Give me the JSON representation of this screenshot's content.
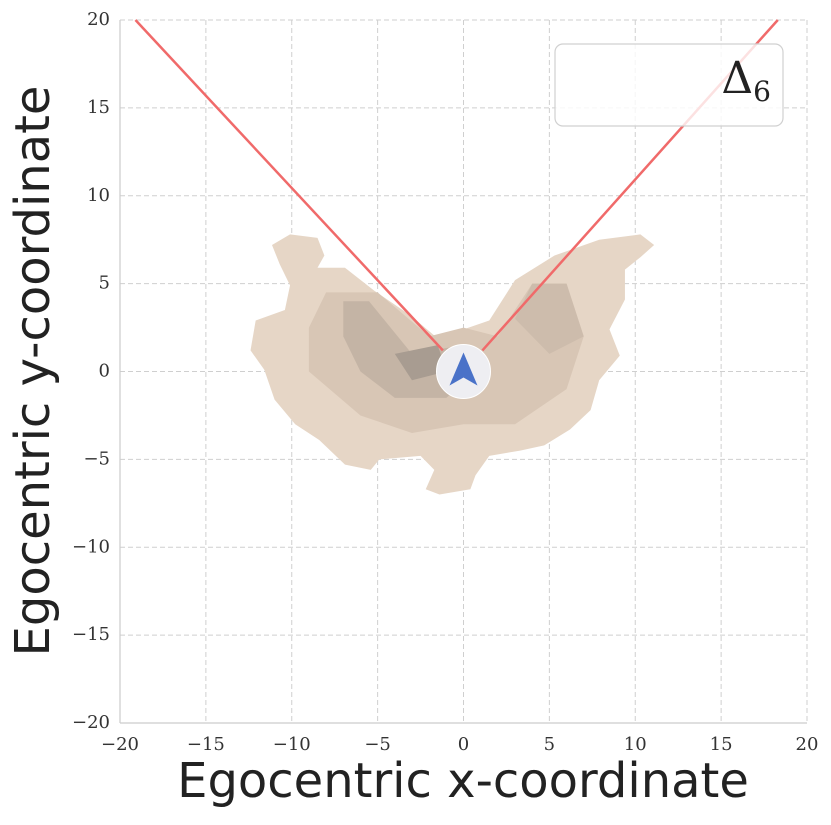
{
  "chart_data": {
    "type": "kde",
    "xlabel": "Egocentric x-coordinate",
    "ylabel": "Egocentric y-coordinate",
    "xlim": [
      -20,
      20
    ],
    "ylim": [
      -20,
      20
    ],
    "xticks": [
      {
        "value": -20,
        "label": "−20"
      },
      {
        "value": -15,
        "label": "−15"
      },
      {
        "value": -10,
        "label": "−10"
      },
      {
        "value": -5,
        "label": "−5"
      },
      0,
      5,
      10,
      15,
      20
    ],
    "yticks": [
      {
        "value": -20,
        "label": "−20"
      },
      {
        "value": -15,
        "label": "−15"
      },
      {
        "value": -10,
        "label": "−10"
      },
      {
        "value": -5,
        "label": "−5"
      },
      0,
      5,
      10,
      15,
      20
    ],
    "grid": true,
    "contours": [
      {
        "color": "#e6d6c6",
        "x": [
          -11.15,
          -10.1,
          -8.5,
          -8.1,
          -8.5,
          -6.9,
          -5.2,
          -3.1,
          -1.4,
          0,
          1.5,
          3.0,
          5.3,
          7.9,
          10.3,
          11.1,
          10.3,
          9.4,
          9.4,
          8.5,
          9.1,
          7.9,
          7.4,
          6.2,
          4.7,
          3.3,
          1.5,
          0.7,
          0.4,
          -1.4,
          -2.2,
          -1.7,
          -2.5,
          -4.9,
          -5.4,
          -6.9,
          -8.4,
          -9.8,
          -11.0,
          -11.6,
          -12.4,
          -12.1,
          -10.4,
          -10.1,
          -10.7
        ],
        "y": [
          7.2,
          7.8,
          7.6,
          6.6,
          5.9,
          5.9,
          4.6,
          3.2,
          1.8,
          2.4,
          2.9,
          5.2,
          6.6,
          7.5,
          7.8,
          7.2,
          6.5,
          5.8,
          4.1,
          2.4,
          0.9,
          -0.5,
          -2.2,
          -3.3,
          -4.2,
          -4.5,
          -4.8,
          -5.9,
          -6.7,
          -7.0,
          -6.7,
          -5.6,
          -4.8,
          -5.0,
          -5.6,
          -5.3,
          -3.9,
          -3.0,
          -1.6,
          0.1,
          1.2,
          2.9,
          3.5,
          4.9,
          6.1
        ]
      },
      {
        "color": "#d8c6b5",
        "x": [
          -8,
          -5,
          -2,
          0,
          2,
          4,
          6,
          7,
          6,
          3,
          0,
          -3,
          -6,
          -9,
          -9
        ],
        "y": [
          4.5,
          4.5,
          2,
          2.5,
          2,
          5,
          5,
          2,
          -1,
          -3,
          -3,
          -3.5,
          -2.5,
          0,
          2.5
        ]
      },
      {
        "color": "#c4b4a5",
        "x": [
          -7,
          -5.5,
          -3,
          0,
          0.8,
          -1,
          -4,
          -6,
          -7
        ],
        "y": [
          4,
          4,
          1,
          1.5,
          0,
          -1.5,
          -1.5,
          0,
          2
        ]
      },
      {
        "color": "#a89c91",
        "x": [
          -4,
          -1.5,
          -1,
          -3
        ],
        "y": [
          1,
          1.5,
          0,
          -0.5
        ]
      },
      {
        "color": "#cdbcac",
        "x": [
          4,
          6,
          7,
          5,
          3
        ],
        "y": [
          5,
          5,
          2,
          1,
          3
        ]
      }
    ],
    "lines": [
      {
        "color": "#f06a6a",
        "x": [
          -1.2,
          -19.1
        ],
        "y": [
          1.2,
          20
        ]
      },
      {
        "color": "#f06a6a",
        "x": [
          1.1,
          18.3
        ],
        "y": [
          1.2,
          20
        ]
      }
    ],
    "marker": {
      "x": 0,
      "y": 0,
      "color": "#4a72c8"
    },
    "legend": {
      "label": "Δ",
      "subscript": "6",
      "loc": "upper right"
    }
  }
}
